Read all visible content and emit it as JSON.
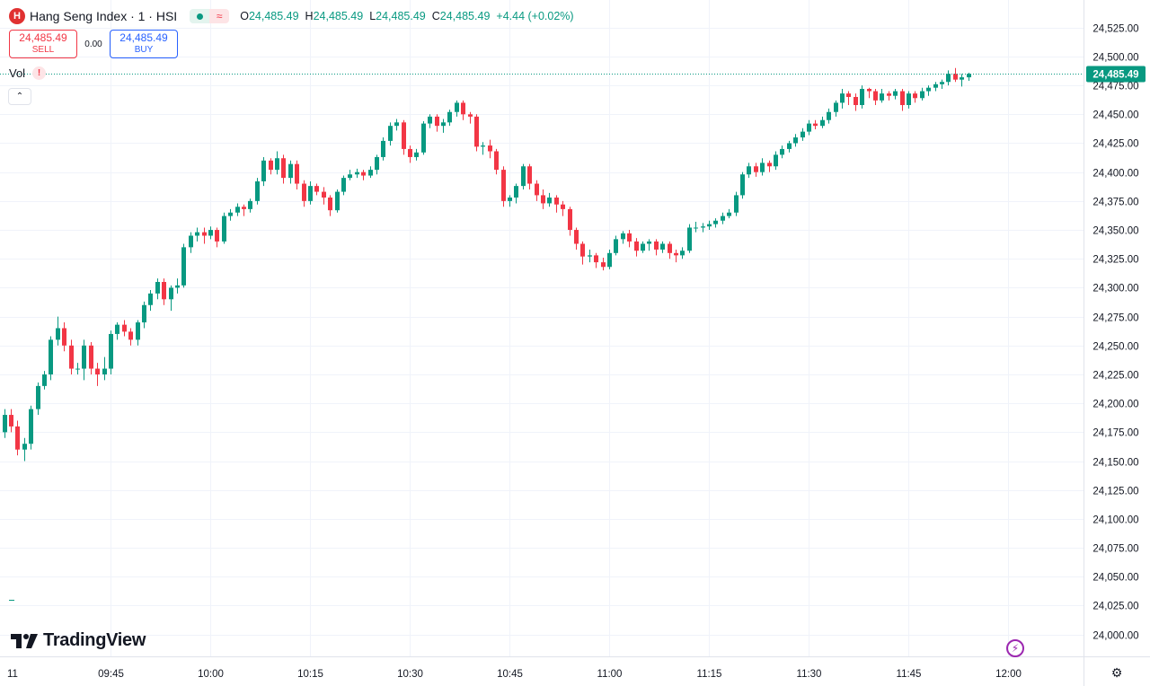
{
  "header": {
    "symbol_logo_letter": "H",
    "symbol_title": "Hang Seng Index · 1 · HSI",
    "status_wave_glyph": "≈",
    "ohlc": [
      {
        "key": "O",
        "value": "24,485.49"
      },
      {
        "key": "H",
        "value": "24,485.49"
      },
      {
        "key": "L",
        "value": "24,485.49"
      },
      {
        "key": "C",
        "value": "24,485.49"
      }
    ],
    "change": "+4.44 (+0.02%)"
  },
  "trade": {
    "sell_price": "24,485.49",
    "sell_label": "SELL",
    "spread": "0.00",
    "buy_price": "24,485.49",
    "buy_label": "BUY"
  },
  "indicator": {
    "label": "Vol",
    "warning": "!"
  },
  "collapse_glyph": "⌃",
  "brand": "TradingView",
  "colors": {
    "up": "#089981",
    "down": "#f23645",
    "grid": "#f0f3fa",
    "text": "#131722"
  },
  "icons": {
    "bolt": "bolt-icon",
    "settings": "settings-icon",
    "collapse": "chevron-up-icon"
  },
  "chart_data": {
    "type": "candlestick",
    "ylim": [
      23985,
      24538
    ],
    "y_ticks": [
      "24,000.00",
      "24,025.00",
      "24,050.00",
      "24,075.00",
      "24,100.00",
      "24,125.00",
      "24,150.00",
      "24,175.00",
      "24,200.00",
      "24,225.00",
      "24,250.00",
      "24,275.00",
      "24,300.00",
      "24,325.00",
      "24,350.00",
      "24,375.00",
      "24,400.00",
      "24,425.00",
      "24,450.00",
      "24,475.00",
      "24,500.00",
      "24,525.00"
    ],
    "x_ticks": [
      "11",
      "09:45",
      "10:00",
      "10:15",
      "10:30",
      "10:45",
      "11:00",
      "11:15",
      "11:30",
      "11:45",
      "12:00"
    ],
    "x_tick_minutes": [
      -34.5,
      0,
      15,
      30,
      45,
      60,
      75,
      90,
      105,
      120,
      135
    ],
    "first_candle_minute": -18,
    "last_price": 24485.49,
    "last_price_label": "24,485.49",
    "candles": [
      [
        24060,
        24120,
        24060,
        24125
      ],
      [
        24120,
        24175,
        24115,
        24178
      ],
      [
        24175,
        24190,
        24170,
        24195
      ],
      [
        24190,
        24180,
        24175,
        24195
      ],
      [
        24180,
        24160,
        24155,
        24185
      ],
      [
        24160,
        24165,
        24150,
        24170
      ],
      [
        24165,
        24195,
        24160,
        24198
      ],
      [
        24195,
        24215,
        24190,
        24218
      ],
      [
        24215,
        24225,
        24212,
        24228
      ],
      [
        24225,
        24255,
        24220,
        24258
      ],
      [
        24255,
        24265,
        24250,
        24275
      ],
      [
        24265,
        24250,
        24245,
        24270
      ],
      [
        24250,
        24230,
        24225,
        24255
      ],
      [
        24230,
        24230,
        24225,
        24235
      ],
      [
        24230,
        24250,
        24220,
        24255
      ],
      [
        24250,
        24230,
        24225,
        24253
      ],
      [
        24230,
        24225,
        24215,
        24235
      ],
      [
        24225,
        24230,
        24220,
        24240
      ],
      [
        24230,
        24260,
        24225,
        24263
      ],
      [
        24260,
        24268,
        24255,
        24270
      ],
      [
        24268,
        24262,
        24258,
        24272
      ],
      [
        24262,
        24255,
        24250,
        24265
      ],
      [
        24255,
        24270,
        24250,
        24272
      ],
      [
        24270,
        24285,
        24265,
        24288
      ],
      [
        24285,
        24295,
        24280,
        24298
      ],
      [
        24295,
        24305,
        24290,
        24308
      ],
      [
        24305,
        24290,
        24285,
        24308
      ],
      [
        24290,
        24300,
        24280,
        24302
      ],
      [
        24300,
        24302,
        24295,
        24308
      ],
      [
        24302,
        24335,
        24300,
        24338
      ],
      [
        24335,
        24345,
        24330,
        24348
      ],
      [
        24345,
        24348,
        24340,
        24352
      ],
      [
        24348,
        24345,
        24338,
        24352
      ],
      [
        24345,
        24350,
        24342,
        24353
      ],
      [
        24350,
        24340,
        24335,
        24352
      ],
      [
        24340,
        24362,
        24338,
        24365
      ],
      [
        24362,
        24365,
        24358,
        24368
      ],
      [
        24365,
        24370,
        24362,
        24373
      ],
      [
        24370,
        24368,
        24362,
        24372
      ],
      [
        24368,
        24375,
        24365,
        24377
      ],
      [
        24375,
        24392,
        24372,
        24395
      ],
      [
        24392,
        24410,
        24388,
        24413
      ],
      [
        24410,
        24402,
        24398,
        24412
      ],
      [
        24402,
        24412,
        24398,
        24418
      ],
      [
        24412,
        24395,
        24390,
        24415
      ],
      [
        24395,
        24407,
        24390,
        24410
      ],
      [
        24407,
        24390,
        24385,
        24410
      ],
      [
        24390,
        24375,
        24370,
        24393
      ],
      [
        24375,
        24388,
        24372,
        24392
      ],
      [
        24388,
        24383,
        24380,
        24390
      ],
      [
        24383,
        24378,
        24372,
        24387
      ],
      [
        24378,
        24367,
        24362,
        24380
      ],
      [
        24367,
        24383,
        24365,
        24385
      ],
      [
        24383,
        24395,
        24380,
        24397
      ],
      [
        24395,
        24398,
        24393,
        24402
      ],
      [
        24398,
        24400,
        24395,
        24403
      ],
      [
        24400,
        24397,
        24393,
        24402
      ],
      [
        24397,
        24402,
        24395,
        24405
      ],
      [
        24402,
        24413,
        24398,
        24415
      ],
      [
        24413,
        24427,
        24410,
        24430
      ],
      [
        24427,
        24440,
        24423,
        24443
      ],
      [
        24440,
        24443,
        24436,
        24446
      ],
      [
        24443,
        24420,
        24415,
        24445
      ],
      [
        24420,
        24413,
        24408,
        24423
      ],
      [
        24413,
        24417,
        24410,
        24420
      ],
      [
        24417,
        24442,
        24415,
        24444
      ],
      [
        24442,
        24448,
        24438,
        24450
      ],
      [
        24448,
        24440,
        24435,
        24450
      ],
      [
        24440,
        24443,
        24434,
        24446
      ],
      [
        24443,
        24452,
        24440,
        24454
      ],
      [
        24452,
        24460,
        24448,
        24462
      ],
      [
        24460,
        24450,
        24445,
        24462
      ],
      [
        24450,
        24448,
        24442,
        24452
      ],
      [
        24448,
        24422,
        24418,
        24450
      ],
      [
        24422,
        24423,
        24415,
        24426
      ],
      [
        24423,
        24418,
        24412,
        24428
      ],
      [
        24418,
        24402,
        24398,
        24420
      ],
      [
        24402,
        24375,
        24370,
        24405
      ],
      [
        24375,
        24378,
        24370,
        24380
      ],
      [
        24378,
        24388,
        24373,
        24390
      ],
      [
        24388,
        24405,
        24385,
        24407
      ],
      [
        24405,
        24390,
        24385,
        24407
      ],
      [
        24390,
        24380,
        24375,
        24393
      ],
      [
        24380,
        24373,
        24368,
        24385
      ],
      [
        24373,
        24378,
        24370,
        24382
      ],
      [
        24378,
        24372,
        24365,
        24380
      ],
      [
        24372,
        24368,
        24362,
        24375
      ],
      [
        24368,
        24350,
        24345,
        24370
      ],
      [
        24350,
        24338,
        24333,
        24352
      ],
      [
        24338,
        24327,
        24320,
        24340
      ],
      [
        24327,
        24328,
        24322,
        24333
      ],
      [
        24328,
        24322,
        24317,
        24330
      ],
      [
        24322,
        24318,
        24315,
        24326
      ],
      [
        24318,
        24330,
        24316,
        24333
      ],
      [
        24330,
        24342,
        24328,
        24345
      ],
      [
        24342,
        24347,
        24338,
        24349
      ],
      [
        24347,
        24340,
        24335,
        24350
      ],
      [
        24340,
        24332,
        24327,
        24343
      ],
      [
        24332,
        24338,
        24330,
        24340
      ],
      [
        24338,
        24340,
        24332,
        24342
      ],
      [
        24340,
        24333,
        24328,
        24342
      ],
      [
        24333,
        24338,
        24330,
        24340
      ],
      [
        24338,
        24330,
        24325,
        24340
      ],
      [
        24330,
        24328,
        24322,
        24333
      ],
      [
        24328,
        24332,
        24325,
        24335
      ],
      [
        24332,
        24352,
        24330,
        24355
      ],
      [
        24352,
        24352,
        24348,
        24357
      ],
      [
        24352,
        24353,
        24348,
        24356
      ],
      [
        24353,
        24355,
        24350,
        24358
      ],
      [
        24355,
        24358,
        24352,
        24360
      ],
      [
        24358,
        24362,
        24355,
        24365
      ],
      [
        24362,
        24365,
        24360,
        24368
      ],
      [
        24365,
        24380,
        24362,
        24383
      ],
      [
        24380,
        24398,
        24377,
        24400
      ],
      [
        24398,
        24405,
        24395,
        24408
      ],
      [
        24405,
        24400,
        24396,
        24408
      ],
      [
        24400,
        24408,
        24397,
        24412
      ],
      [
        24408,
        24405,
        24400,
        24410
      ],
      [
        24405,
        24415,
        24402,
        24418
      ],
      [
        24415,
        24420,
        24412,
        24423
      ],
      [
        24420,
        24425,
        24417,
        24427
      ],
      [
        24425,
        24430,
        24422,
        24433
      ],
      [
        24430,
        24435,
        24427,
        24438
      ],
      [
        24435,
        24442,
        24432,
        24445
      ],
      [
        24442,
        24440,
        24437,
        24445
      ],
      [
        24440,
        24445,
        24438,
        24448
      ],
      [
        24445,
        24452,
        24442,
        24455
      ],
      [
        24452,
        24460,
        24448,
        24462
      ],
      [
        24460,
        24468,
        24455,
        24472
      ],
      [
        24468,
        24465,
        24458,
        24470
      ],
      [
        24465,
        24458,
        24453,
        24468
      ],
      [
        24458,
        24472,
        24455,
        24475
      ],
      [
        24472,
        24470,
        24464,
        24473
      ],
      [
        24470,
        24462,
        24458,
        24472
      ],
      [
        24462,
        24468,
        24460,
        24472
      ],
      [
        24468,
        24466,
        24462,
        24470
      ],
      [
        24466,
        24470,
        24463,
        24472
      ],
      [
        24470,
        24458,
        24453,
        24472
      ],
      [
        24458,
        24468,
        24455,
        24470
      ],
      [
        24468,
        24464,
        24460,
        24470
      ],
      [
        24464,
        24470,
        24462,
        24473
      ],
      [
        24470,
        24473,
        24466,
        24475
      ],
      [
        24473,
        24476,
        24470,
        24478
      ],
      [
        24476,
        24478,
        24472,
        24480
      ],
      [
        24478,
        24485,
        24475,
        24488
      ],
      [
        24485,
        24480,
        24478,
        24490
      ],
      [
        24480,
        24482,
        24474,
        24485
      ],
      [
        24482,
        24485,
        24479,
        24486
      ]
    ]
  }
}
